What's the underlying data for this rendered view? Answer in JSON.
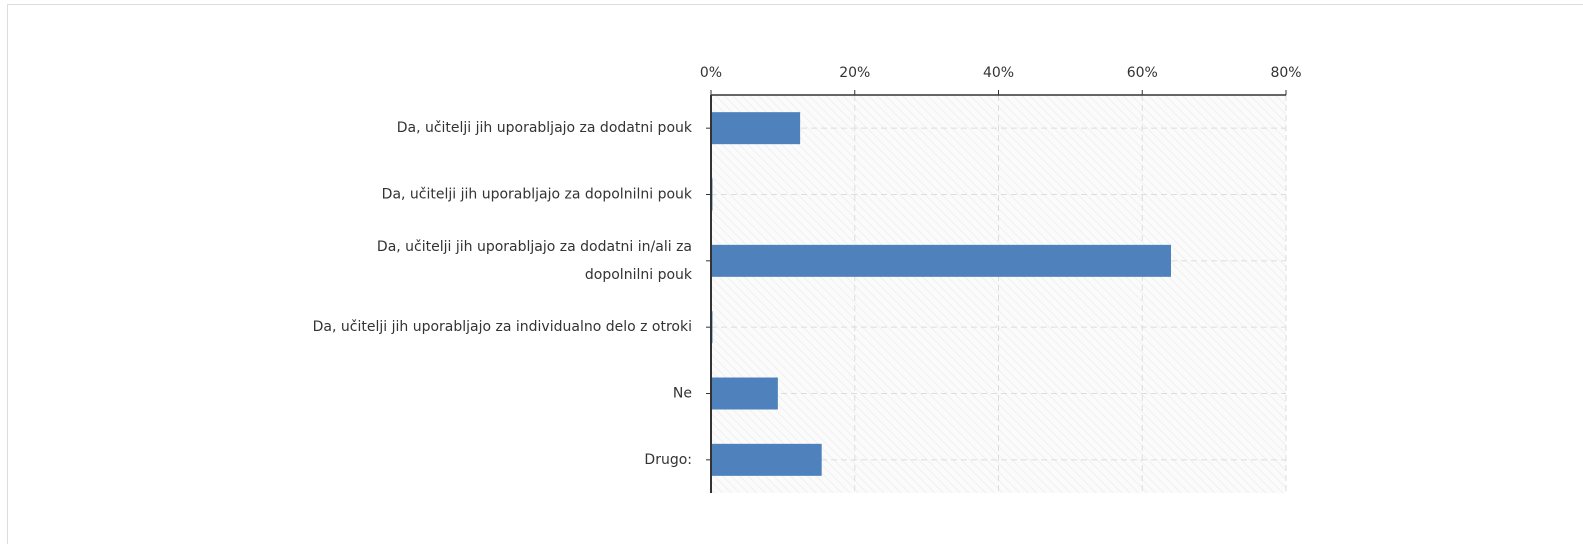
{
  "chart_data": {
    "type": "bar",
    "orientation": "horizontal",
    "categories": [
      "Da, učitelji jih uporabljajo za dodatni pouk",
      "Da, učitelji jih uporabljajo za dopolnilni pouk",
      "Da, učitelji jih uporabljajo za dodatni in/ali za dopolnilni pouk",
      "Da, učitelji jih uporabljajo za individualno delo z otroki",
      "Ne",
      "Drugo:"
    ],
    "values": [
      12.4,
      0,
      64,
      0,
      9.3,
      15.4
    ],
    "color": "#4f81bd",
    "xlim": [
      0,
      80
    ],
    "xticks": [
      {
        "value": 0,
        "label": "0%"
      },
      {
        "value": 20,
        "label": "20%"
      },
      {
        "value": 40,
        "label": "40%"
      },
      {
        "value": 60,
        "label": "60%"
      },
      {
        "value": 80,
        "label": "80%"
      }
    ],
    "grid": true
  }
}
